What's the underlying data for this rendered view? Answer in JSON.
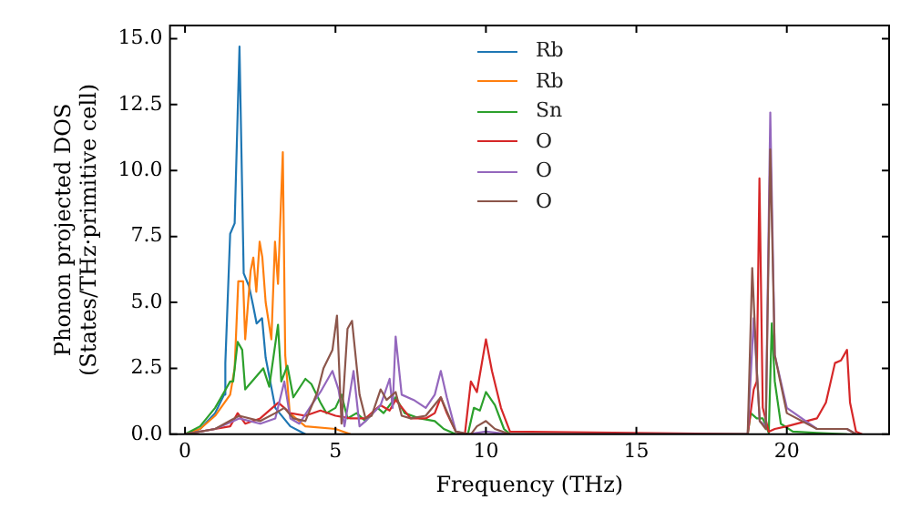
{
  "chart_data": {
    "type": "line",
    "xlabel": "Frequency (THz)",
    "ylabel": "Phonon projected DOS\n(States/THz·primitive cell)",
    "xlim": [
      -0.5,
      23.4
    ],
    "ylim": [
      0,
      15.5
    ],
    "xticks": [
      0,
      5,
      10,
      15,
      20
    ],
    "yticks": [
      {
        "value": 0,
        "label": "0.0"
      },
      {
        "value": 2.5,
        "label": "2.5"
      },
      {
        "value": 5,
        "label": "5.0"
      },
      {
        "value": 7.5,
        "label": "7.5"
      },
      {
        "value": 10,
        "label": "10.0"
      },
      {
        "value": 12.5,
        "label": "12.5"
      },
      {
        "value": 15,
        "label": "15.0"
      }
    ],
    "grid": false,
    "legend": "top",
    "marker": "none",
    "line_style": "solid",
    "series": [
      {
        "name": "Rb",
        "color": "#1f77b4",
        "x": [
          0,
          0.5,
          1,
          1.3,
          1.34,
          1.5,
          1.65,
          1.81,
          1.95,
          2.13,
          2.26,
          2.38,
          2.56,
          2.68,
          3.0,
          3.5,
          4.0
        ],
        "values": [
          0,
          0.2,
          0.8,
          1.5,
          2.7,
          7.6,
          8.0,
          14.7,
          6.1,
          5.6,
          4.9,
          4.2,
          4.4,
          2.9,
          1.0,
          0.3,
          0
        ]
      },
      {
        "name": "Rb",
        "color": "#ff7f0e",
        "x": [
          0,
          0.5,
          1,
          1.5,
          1.65,
          1.77,
          1.93,
          2.0,
          2.18,
          2.27,
          2.37,
          2.48,
          2.57,
          2.68,
          2.87,
          2.99,
          3.09,
          3.25,
          3.33,
          3.48,
          4.0,
          5.0,
          5.5
        ],
        "values": [
          0,
          0.2,
          0.7,
          1.5,
          2.5,
          5.8,
          5.8,
          3.6,
          6.2,
          6.7,
          5.4,
          7.3,
          6.7,
          5.0,
          3.6,
          7.3,
          5.7,
          10.7,
          3.0,
          0.8,
          0.3,
          0.2,
          0
        ]
      },
      {
        "name": "Sn",
        "color": "#2ca02c",
        "x": [
          0,
          0.5,
          1,
          1.3,
          1.5,
          1.6,
          1.75,
          1.9,
          2.0,
          2.3,
          2.6,
          2.8,
          3.09,
          3.2,
          3.4,
          3.6,
          4.0,
          4.2,
          4.5,
          4.7,
          5.0,
          5.2,
          5.4,
          5.7,
          6.0,
          6.4,
          6.6,
          7.0,
          7.3,
          7.8,
          8.3,
          8.6,
          9.0,
          9.4,
          9.6,
          9.8,
          10.0,
          10.3,
          10.6,
          10.8,
          18.7,
          18.8,
          19.0,
          19.2,
          19.4,
          19.5,
          19.6,
          19.8,
          20.2,
          21,
          22
        ],
        "values": [
          0,
          0.3,
          1.0,
          1.6,
          2.0,
          2.0,
          3.5,
          3.2,
          1.7,
          2.1,
          2.5,
          1.8,
          4.15,
          2.0,
          2.6,
          1.4,
          2.1,
          1.9,
          1.2,
          0.8,
          1.0,
          1.5,
          0.6,
          0.8,
          0.5,
          1.0,
          0.8,
          1.4,
          0.8,
          0.6,
          0.5,
          0.2,
          0,
          0,
          1.0,
          0.9,
          1.6,
          1.1,
          0.2,
          0,
          0,
          0.8,
          0.6,
          0.6,
          0.05,
          4.2,
          2.0,
          0.4,
          0.1,
          0.05,
          0
        ]
      },
      {
        "name": "O",
        "color": "#d62728",
        "x": [
          0,
          1,
          1.5,
          1.75,
          2,
          2.5,
          3.1,
          3.5,
          4,
          4.5,
          5,
          5.5,
          6,
          6.5,
          6.8,
          7,
          7.5,
          8,
          8.3,
          8.5,
          8.7,
          9,
          9.3,
          9.5,
          9.7,
          10.0,
          10.2,
          10.5,
          10.8,
          18.7,
          18.9,
          19.0,
          19.09,
          19.2,
          19.4,
          19.6,
          20,
          21,
          21.3,
          21.6,
          21.8,
          22.0,
          22.1,
          22.3,
          22.5
        ],
        "values": [
          0,
          0.2,
          0.3,
          0.8,
          0.4,
          0.6,
          1.2,
          0.8,
          0.7,
          0.9,
          0.7,
          0.6,
          0.6,
          1.1,
          0.9,
          1.3,
          0.6,
          0.6,
          0.8,
          1.4,
          0.8,
          0.1,
          0,
          2.0,
          1.6,
          3.6,
          2.4,
          1.0,
          0.1,
          0,
          1.7,
          2.0,
          9.7,
          1.0,
          0.1,
          0.2,
          0.3,
          0.6,
          1.2,
          2.7,
          2.8,
          3.2,
          1.2,
          0.1,
          0
        ]
      },
      {
        "name": "O",
        "color": "#9467bd",
        "x": [
          0,
          1,
          1.8,
          2.5,
          3.0,
          3.3,
          3.5,
          3.8,
          4.2,
          4.5,
          4.9,
          5.1,
          5.3,
          5.6,
          5.8,
          6.0,
          6.5,
          6.8,
          6.9,
          7.0,
          7.2,
          7.6,
          8.0,
          8.3,
          8.5,
          8.7,
          9.0,
          9.4,
          10,
          10.8,
          18.7,
          18.9,
          19.1,
          19.3,
          19.45,
          19.6,
          20,
          21,
          22,
          22.3
        ],
        "values": [
          0,
          0.2,
          0.6,
          0.4,
          0.6,
          2.0,
          0.6,
          0.4,
          1.1,
          1.6,
          2.4,
          1.7,
          0.3,
          2.4,
          0.3,
          0.5,
          1.1,
          2.1,
          1.0,
          3.7,
          1.5,
          1.3,
          1.0,
          1.5,
          2.4,
          1.4,
          0.1,
          0,
          0.1,
          0,
          0,
          4.4,
          0.5,
          0.3,
          12.2,
          3.0,
          1.0,
          0.2,
          0.2,
          0
        ]
      },
      {
        "name": "O",
        "color": "#8c564b",
        "x": [
          0,
          1,
          1.8,
          2.5,
          3.0,
          3.3,
          3.6,
          4.0,
          4.4,
          4.6,
          4.9,
          5.05,
          5.2,
          5.4,
          5.55,
          5.8,
          6.0,
          6.2,
          6.5,
          6.7,
          7.0,
          7.2,
          7.5,
          8.0,
          8.5,
          8.8,
          9.0,
          9.5,
          9.7,
          10,
          10.3,
          10.8,
          18.7,
          18.85,
          19.0,
          19.1,
          19.3,
          19.45,
          19.6,
          20,
          21,
          22,
          22.3
        ],
        "values": [
          0,
          0.2,
          0.7,
          0.5,
          0.8,
          1.0,
          0.6,
          0.5,
          1.6,
          2.5,
          3.2,
          4.5,
          0.4,
          4.0,
          4.3,
          1.5,
          0.6,
          0.7,
          1.7,
          1.3,
          1.6,
          0.7,
          0.6,
          0.7,
          1.4,
          0.6,
          0.1,
          0,
          0.3,
          0.5,
          0.2,
          0,
          0,
          6.3,
          2.5,
          0.5,
          0.2,
          10.8,
          3.0,
          0.8,
          0.2,
          0.2,
          0
        ]
      }
    ]
  }
}
